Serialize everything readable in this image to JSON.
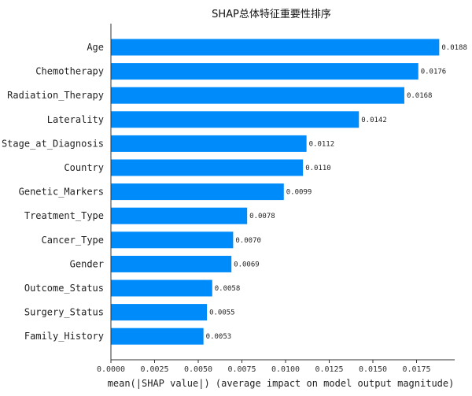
{
  "chart_data": {
    "type": "bar",
    "orientation": "horizontal",
    "title": "SHAP总体特征重要性排序",
    "xlabel": "mean(|SHAP value|) (average impact on model output magnitude)",
    "ylabel": "",
    "categories": [
      "Age",
      "Chemotherapy",
      "Radiation_Therapy",
      "Laterality",
      "Stage_at_Diagnosis",
      "Country",
      "Genetic_Markers",
      "Treatment_Type",
      "Cancer_Type",
      "Gender",
      "Outcome_Status",
      "Surgery_Status",
      "Family_History"
    ],
    "values": [
      0.0188,
      0.0176,
      0.0168,
      0.0142,
      0.0112,
      0.011,
      0.0099,
      0.0078,
      0.007,
      0.0069,
      0.0058,
      0.0055,
      0.0053
    ],
    "data_labels": [
      "0.0188",
      "0.0176",
      "0.0168",
      "0.0142",
      "0.0112",
      "0.0110",
      "0.0099",
      "0.0078",
      "0.0070",
      "0.0069",
      "0.0058",
      "0.0055",
      "0.0053"
    ],
    "xticks": [
      "0.0000",
      "0.0025",
      "0.0050",
      "0.0075",
      "0.0100",
      "0.0125",
      "0.0150",
      "0.0175"
    ],
    "xlim": [
      0,
      0.0197
    ],
    "grid": false,
    "bar_color": "#008bfb"
  }
}
